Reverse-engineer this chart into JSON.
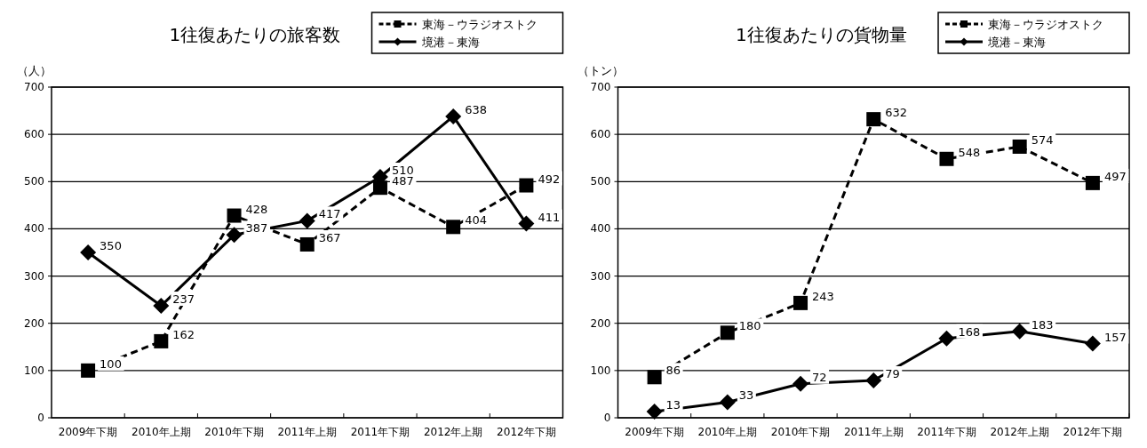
{
  "chart_data": [
    {
      "type": "line",
      "title": "1往復あたりの旅客数",
      "ylabel": "（人）",
      "categories": [
        "2009年下期",
        "2010年上期",
        "2010年下期",
        "2011年上期",
        "2011年下期",
        "2012年上期",
        "2012年下期"
      ],
      "series": [
        {
          "name": "東海－ウラジオストク",
          "color": "#000000",
          "marker": "square",
          "line_style": "dashed",
          "values": [
            100,
            162,
            428,
            367,
            487,
            404,
            492
          ]
        },
        {
          "name": "境港－東海",
          "color": "#000000",
          "marker": "diamond",
          "line_style": "solid",
          "values": [
            350,
            237,
            387,
            417,
            510,
            638,
            411
          ]
        }
      ],
      "ylim": [
        0,
        700
      ],
      "yticks": [
        0,
        100,
        200,
        300,
        400,
        500,
        600,
        700
      ],
      "grid": "y",
      "legend": "top right",
      "data_labels": true
    },
    {
      "type": "line",
      "title": "1往復あたりの貨物量",
      "ylabel": "（トン）",
      "categories": [
        "2009年下期",
        "2010年上期",
        "2010年下期",
        "2011年上期",
        "2011年下期",
        "2012年上期",
        "2012年下期"
      ],
      "series": [
        {
          "name": "東海－ウラジオストク",
          "color": "#000000",
          "marker": "square",
          "line_style": "dashed",
          "values": [
            86,
            180,
            243,
            632,
            548,
            574,
            497
          ]
        },
        {
          "name": "境港－東海",
          "color": "#000000",
          "marker": "diamond",
          "line_style": "solid",
          "values": [
            13,
            33,
            72,
            79,
            168,
            183,
            157
          ]
        }
      ],
      "ylim": [
        0,
        700
      ],
      "yticks": [
        0,
        100,
        200,
        300,
        400,
        500,
        600,
        700
      ],
      "grid": "y",
      "legend": "top right",
      "data_labels": true
    }
  ]
}
